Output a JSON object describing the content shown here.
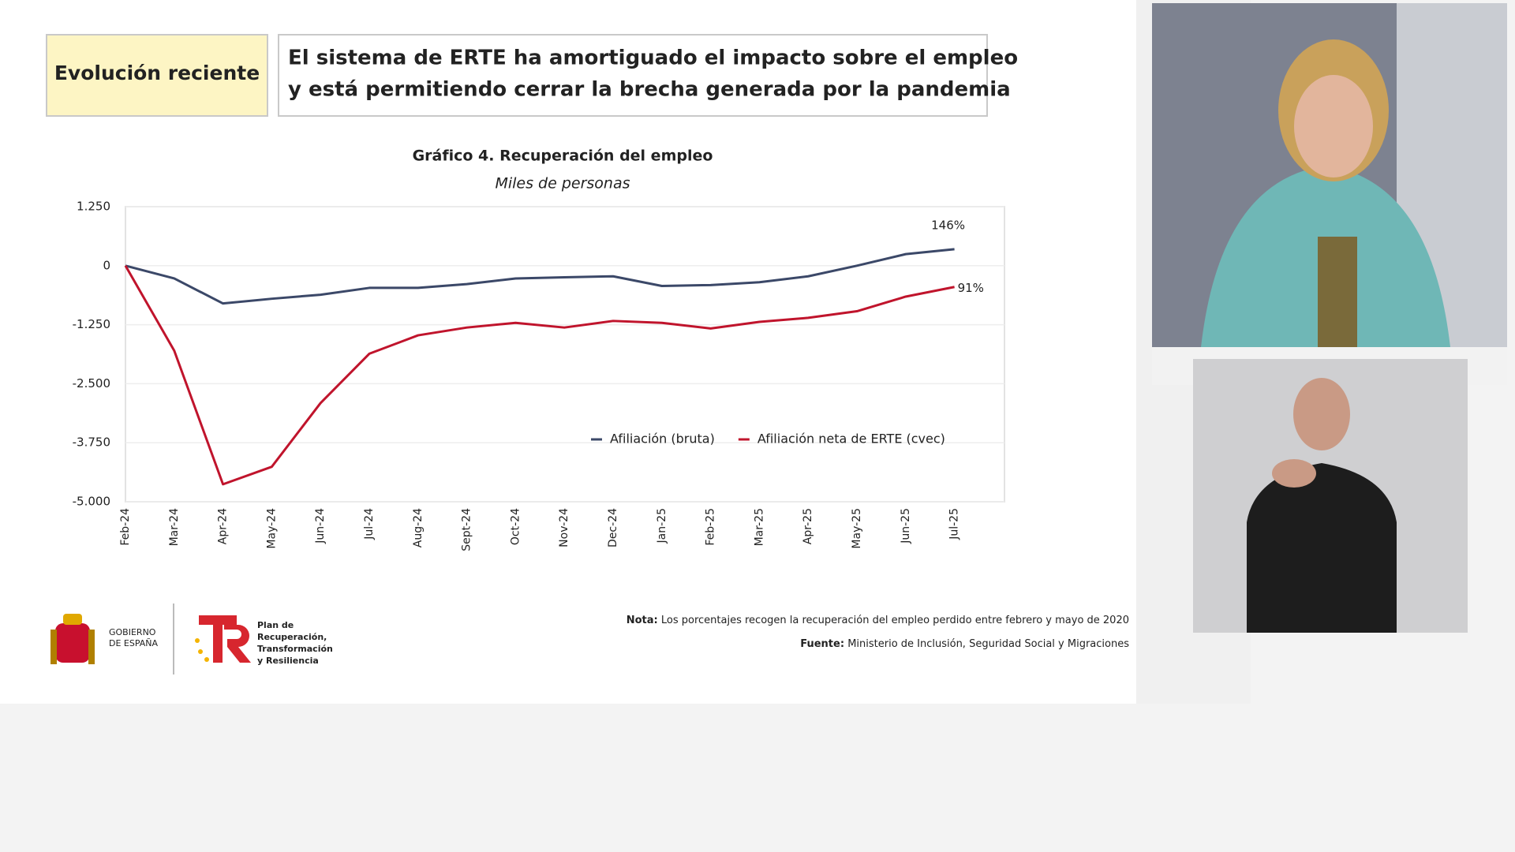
{
  "header": {
    "tag": "Evolución reciente",
    "title": [
      "El sistema de ERTE ha amortiguado el impacto sobre el empleo",
      "y está permitiendo cerrar la brecha generada por la pandemia"
    ]
  },
  "chart_data": {
    "type": "line",
    "title": "Gráfico 4. Recuperación del empleo",
    "subtitle": "Miles de personas",
    "categories": [
      "Feb-24",
      "Mar-24",
      "Apr-24",
      "May-24",
      "Jun-24",
      "Jul-24",
      "Aug-24",
      "Sept-24",
      "Oct-24",
      "Nov-24",
      "Dec-24",
      "Jan-25",
      "Feb-25",
      "Mar-25",
      "Apr-25",
      "May-25",
      "Jun-25",
      "Jul-25"
    ],
    "series": [
      {
        "name": "Afiliación (bruta)",
        "color": "#3b4868",
        "end_label": "146%",
        "values": [
          0,
          -270,
          -800,
          -700,
          -615,
          -470,
          -470,
          -390,
          -270,
          -245,
          -225,
          -430,
          -410,
          -350,
          -225,
          0,
          245,
          350
        ]
      },
      {
        "name": "Afiliación neta de ERTE (cvec)",
        "color": "#c0142c",
        "end_label": "91%",
        "values": [
          0,
          -1800,
          -4630,
          -4260,
          -2910,
          -1865,
          -1475,
          -1310,
          -1210,
          -1310,
          -1170,
          -1210,
          -1330,
          -1190,
          -1105,
          -965,
          -655,
          -450
        ]
      }
    ],
    "ylim": [
      -5000,
      1250
    ],
    "yticks": [
      {
        "value": 1250,
        "label": "1.250"
      },
      0,
      {
        "value": -1250,
        "label": "-1.250"
      },
      {
        "value": -2500,
        "label": "-2.500"
      },
      {
        "value": -3750,
        "label": "-3.750"
      },
      {
        "value": -5000,
        "label": "-5.000"
      }
    ],
    "grid": true,
    "legend": "lower right"
  },
  "notes": [
    {
      "label": "Nota:",
      "text": "Los porcentajes recogen la recuperación del empleo perdido entre febrero y mayo de 2020"
    },
    {
      "label": "Fuente:",
      "text": "Ministerio de Inclusión, Seguridad Social y Migraciones"
    }
  ],
  "logos": {
    "government": [
      "GOBIERNO",
      "DE ESPAÑA"
    ],
    "plan": [
      "Plan de",
      "Recuperación,",
      "Transformación",
      "y Resiliencia"
    ]
  }
}
